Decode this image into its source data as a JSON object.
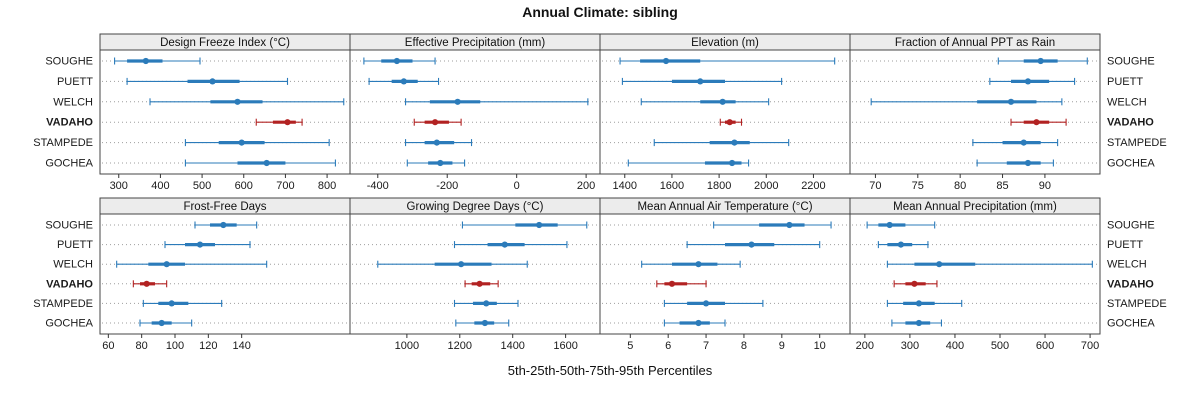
{
  "title": "Annual Climate: sibling",
  "caption": "5th-25th-50th-75th-95th Percentiles",
  "colors": {
    "site": "#2b7bba",
    "highlight": "#b22222",
    "strip_bg": "#ececec",
    "border": "#444444",
    "grid": "#9e9e9e"
  },
  "chart_data": {
    "type": "trellis-dotplot-intervals",
    "percentile_levels": [
      5,
      25,
      50,
      75,
      95
    ],
    "sites": [
      "SOUGHE",
      "PUETT",
      "WELCH",
      "VADAHO",
      "STAMPEDE",
      "GOCHEA"
    ],
    "highlight_site": "VADAHO",
    "grid": "dotted-horizontal-row-lines",
    "legend_position": "none",
    "layout": "2-rows-4-columns",
    "panels": [
      {
        "title": "Design Freeze Index (°C)",
        "xlim": [
          255,
          855
        ],
        "ticks": [
          300,
          400,
          500,
          600,
          700,
          800
        ],
        "values": [
          [
            290,
            320,
            365,
            405,
            495
          ],
          [
            320,
            465,
            525,
            590,
            705
          ],
          [
            375,
            520,
            585,
            645,
            840
          ],
          [
            630,
            670,
            705,
            725,
            740
          ],
          [
            460,
            540,
            595,
            650,
            805
          ],
          [
            460,
            585,
            655,
            700,
            820
          ]
        ]
      },
      {
        "title": "Effective Precipitation (mm)",
        "xlim": [
          -480,
          240
        ],
        "ticks": [
          -400,
          -200,
          0,
          200
        ],
        "values": [
          [
            -440,
            -390,
            -345,
            -300,
            -235
          ],
          [
            -425,
            -360,
            -325,
            -285,
            -225
          ],
          [
            -320,
            -250,
            -170,
            -105,
            205
          ],
          [
            -295,
            -265,
            -235,
            -195,
            -160
          ],
          [
            -320,
            -265,
            -230,
            -180,
            -130
          ],
          [
            -315,
            -255,
            -220,
            -185,
            -150
          ]
        ]
      },
      {
        "title": "Elevation (m)",
        "xlim": [
          1295,
          2355
        ],
        "ticks": [
          1400,
          1600,
          1800,
          2000,
          2200
        ],
        "values": [
          [
            1380,
            1465,
            1575,
            1720,
            2290
          ],
          [
            1390,
            1600,
            1720,
            1825,
            2065
          ],
          [
            1470,
            1720,
            1815,
            1870,
            2010
          ],
          [
            1805,
            1825,
            1845,
            1870,
            1895
          ],
          [
            1525,
            1760,
            1865,
            1930,
            2095
          ],
          [
            1415,
            1740,
            1855,
            1895,
            1925
          ]
        ]
      },
      {
        "title": "Fraction of Annual PPT as Rain",
        "xlim": [
          67,
          96.5
        ],
        "ticks": [
          70,
          75,
          80,
          85,
          90
        ],
        "values": [
          [
            84.5,
            87.5,
            89.5,
            91.5,
            95
          ],
          [
            83.5,
            86,
            88,
            90.5,
            93.5
          ],
          [
            69.5,
            82,
            86,
            89,
            92
          ],
          [
            86,
            87.5,
            89,
            90.5,
            92.5
          ],
          [
            81.5,
            85,
            87.5,
            89.5,
            91.5
          ],
          [
            82,
            85.5,
            88,
            89.5,
            91
          ]
        ]
      },
      {
        "title": "Frost-Free Days",
        "xlim": [
          55,
          205
        ],
        "ticks": [
          60,
          80,
          100,
          120,
          140
        ],
        "values": [
          [
            112,
            121,
            129,
            137,
            149
          ],
          [
            94,
            106,
            115,
            124,
            145
          ],
          [
            65,
            84,
            95,
            106,
            155
          ],
          [
            75,
            79,
            83,
            88,
            95
          ],
          [
            81,
            90,
            98,
            108,
            128
          ],
          [
            79,
            86,
            92,
            98,
            110
          ]
        ]
      },
      {
        "title": "Growing Degree Days (°C)",
        "xlim": [
          785,
          1730
        ],
        "ticks": [
          1000,
          1200,
          1400,
          1600
        ],
        "values": [
          [
            1210,
            1410,
            1500,
            1570,
            1680
          ],
          [
            1180,
            1305,
            1370,
            1445,
            1605
          ],
          [
            890,
            1105,
            1205,
            1320,
            1455
          ],
          [
            1220,
            1245,
            1275,
            1315,
            1345
          ],
          [
            1180,
            1250,
            1300,
            1340,
            1420
          ],
          [
            1185,
            1255,
            1295,
            1330,
            1385
          ]
        ]
      },
      {
        "title": "Mean Annual Air Temperature (°C)",
        "xlim": [
          4.2,
          10.8
        ],
        "ticks": [
          5,
          6,
          7,
          8,
          9,
          10
        ],
        "values": [
          [
            7.2,
            8.4,
            9.2,
            9.6,
            10.3
          ],
          [
            6.5,
            7.5,
            8.2,
            8.8,
            10.0
          ],
          [
            5.3,
            6.1,
            6.8,
            7.3,
            7.9
          ],
          [
            5.7,
            5.9,
            6.1,
            6.5,
            7.0
          ],
          [
            5.9,
            6.5,
            7.0,
            7.5,
            8.5
          ],
          [
            5.9,
            6.3,
            6.8,
            7.1,
            7.5
          ]
        ]
      },
      {
        "title": "Mean Annual Precipitation (mm)",
        "xlim": [
          167,
          722
        ],
        "ticks": [
          200,
          300,
          400,
          500,
          600,
          700
        ],
        "values": [
          [
            205,
            230,
            255,
            290,
            355
          ],
          [
            230,
            250,
            280,
            305,
            340
          ],
          [
            250,
            310,
            365,
            445,
            705
          ],
          [
            265,
            290,
            310,
            335,
            360
          ],
          [
            250,
            285,
            320,
            355,
            415
          ],
          [
            260,
            290,
            320,
            345,
            370
          ]
        ]
      }
    ]
  }
}
